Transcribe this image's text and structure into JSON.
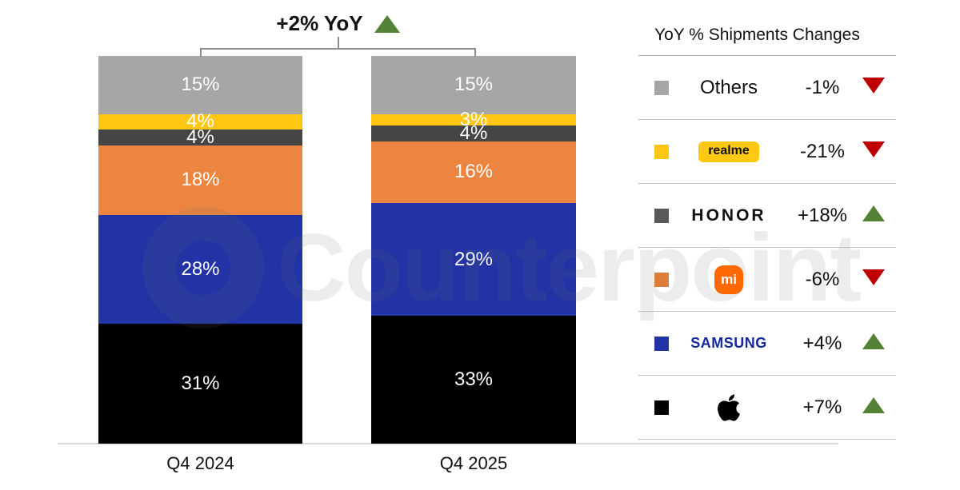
{
  "header": {
    "yoy_label": "+2% YoY",
    "yoy_direction": "up"
  },
  "chart_data": {
    "type": "bar",
    "subtype": "stacked-percent",
    "title": "+2% YoY",
    "categories": [
      "Q4 2024",
      "Q4 2025"
    ],
    "stack_order": "top-to-bottom",
    "value_suffix": "%",
    "ylim": [
      0,
      100
    ],
    "grid": false,
    "series": [
      {
        "name": "Others",
        "color": "#a6a6a6",
        "values": [
          15,
          15
        ]
      },
      {
        "name": "realme",
        "color": "#ffc613",
        "values": [
          4,
          3
        ]
      },
      {
        "name": "HONOR",
        "color": "#454545",
        "values": [
          4,
          4
        ]
      },
      {
        "name": "Xiaomi",
        "color": "#ec8540",
        "values": [
          18,
          16
        ]
      },
      {
        "name": "Samsung",
        "color": "#2133a5",
        "values": [
          28,
          29
        ]
      },
      {
        "name": "Apple",
        "color": "#000000",
        "values": [
          31,
          33
        ]
      }
    ]
  },
  "legend": {
    "title": "YoY % Shipments Changes",
    "rows": [
      {
        "brand": "Others",
        "change": "-1%",
        "direction": "down",
        "swatch": "#a6a6a6"
      },
      {
        "brand": "realme",
        "change": "-21%",
        "direction": "down",
        "swatch": "#ffc613"
      },
      {
        "brand": "HONOR",
        "change": "+18%",
        "direction": "up",
        "swatch": "#595959"
      },
      {
        "brand": "Xiaomi",
        "logo_text": "mi",
        "change": "-6%",
        "direction": "down",
        "swatch": "#de7c3a"
      },
      {
        "brand": "SAMSUNG",
        "change": "+4%",
        "direction": "up",
        "swatch": "#2133a5"
      },
      {
        "brand": "Apple",
        "change": "+7%",
        "direction": "up",
        "swatch": "#000000"
      }
    ]
  },
  "watermark": {
    "text": "Counterpoint"
  },
  "colors": {
    "up": "#538135",
    "down": "#c00000",
    "mi_logo": "#ff6900",
    "samsung_blue": "#1428a0",
    "realme_badge": "#ffc913"
  }
}
